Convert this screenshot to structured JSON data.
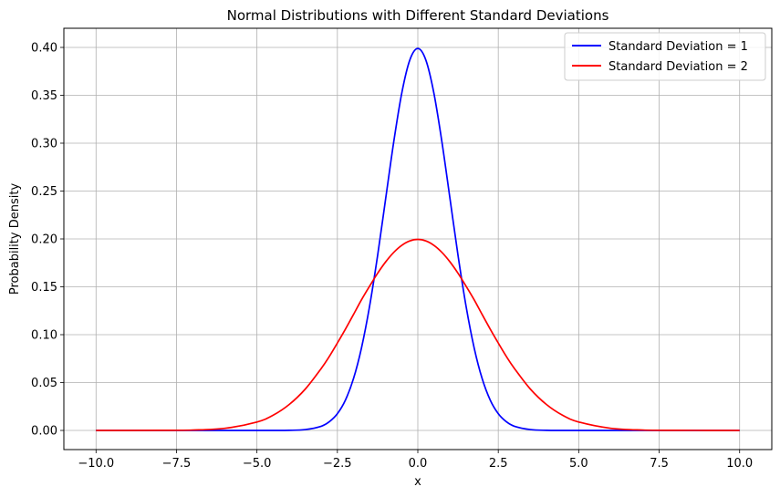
{
  "chart_data": {
    "type": "line",
    "title": "Normal Distributions with Different Standard Deviations",
    "xlabel": "x",
    "ylabel": "Probability Density",
    "xlim": [
      -11,
      11
    ],
    "ylim": [
      -0.02,
      0.42
    ],
    "x_ticks": [
      -10.0,
      -7.5,
      -5.0,
      -2.5,
      0.0,
      2.5,
      5.0,
      7.5,
      10.0
    ],
    "x_tick_labels": [
      "−10.0",
      "−7.5",
      "−5.0",
      "−2.5",
      "0.0",
      "2.5",
      "5.0",
      "7.5",
      "10.0"
    ],
    "y_ticks": [
      0.0,
      0.05,
      0.1,
      0.15,
      0.2,
      0.25,
      0.3,
      0.35,
      0.4
    ],
    "y_tick_labels": [
      "0.00",
      "0.05",
      "0.10",
      "0.15",
      "0.20",
      "0.25",
      "0.30",
      "0.35",
      "0.40"
    ],
    "grid": true,
    "legend_position": "top-right",
    "x": [
      -10,
      -9,
      -8,
      -7,
      -6,
      -5,
      -4.5,
      -4,
      -3.5,
      -3,
      -2.75,
      -2.5,
      -2.25,
      -2,
      -1.75,
      -1.5,
      -1.25,
      -1,
      -0.75,
      -0.5,
      -0.25,
      0,
      0.25,
      0.5,
      0.75,
      1,
      1.25,
      1.5,
      1.75,
      2,
      2.25,
      2.5,
      2.75,
      3,
      3.5,
      4,
      4.5,
      5,
      6,
      7,
      8,
      9,
      10
    ],
    "series": [
      {
        "name": "Standard Deviation = 1",
        "color": "#0000ff",
        "values": [
          0.0,
          0.0,
          0.0,
          0.0,
          0.0,
          0.0,
          0.0,
          0.0001,
          0.0009,
          0.0044,
          0.0091,
          0.0175,
          0.0317,
          0.054,
          0.0863,
          0.1295,
          0.1826,
          0.242,
          0.3011,
          0.3521,
          0.3867,
          0.3989,
          0.3867,
          0.3521,
          0.3011,
          0.242,
          0.1826,
          0.1295,
          0.0863,
          0.054,
          0.0317,
          0.0175,
          0.0091,
          0.0044,
          0.0009,
          0.0001,
          0.0,
          0.0,
          0.0,
          0.0,
          0.0,
          0.0,
          0.0
        ]
      },
      {
        "name": "Standard Deviation = 2",
        "color": "#ff0000",
        "values": [
          0.0,
          0.0,
          0.0001,
          0.0004,
          0.0022,
          0.0088,
          0.0158,
          0.027,
          0.0431,
          0.0648,
          0.0773,
          0.0913,
          0.1058,
          0.121,
          0.1365,
          0.1506,
          0.1641,
          0.176,
          0.1859,
          0.1933,
          0.1979,
          0.1995,
          0.1979,
          0.1933,
          0.1859,
          0.176,
          0.1641,
          0.1506,
          0.1365,
          0.121,
          0.1058,
          0.0913,
          0.0773,
          0.0648,
          0.0431,
          0.027,
          0.0158,
          0.0088,
          0.0022,
          0.0004,
          0.0001,
          0.0,
          0.0
        ]
      }
    ]
  }
}
